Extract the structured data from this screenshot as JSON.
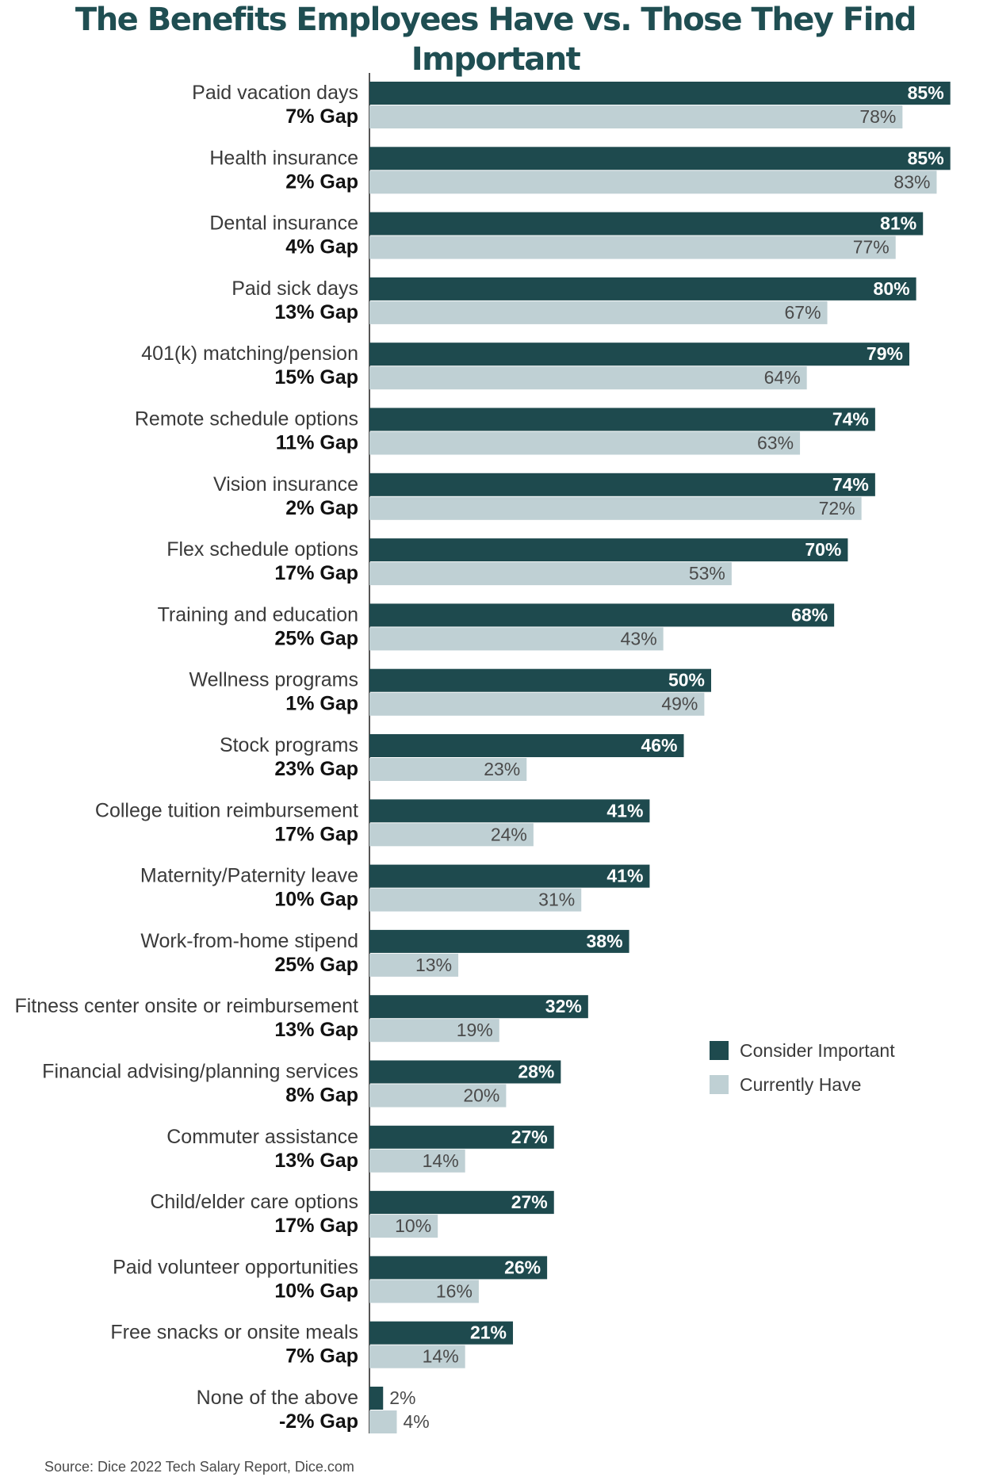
{
  "title": "The Benefits Employees Have vs. Those They Find Important",
  "source": "Source: Dice 2022 Tech Salary Report, Dice.com",
  "colors": {
    "important": "#1e4a4e",
    "have": "#bfd0d4",
    "axis": "#555555"
  },
  "legend": {
    "important_label": "Consider Important",
    "have_label": "Currently Have"
  },
  "chart_data": {
    "type": "bar",
    "orientation": "horizontal",
    "title": "The Benefits Employees Have vs. Those They Find Important",
    "xlim": [
      0,
      100
    ],
    "legend_position": "right",
    "categories": [
      "Paid vacation days",
      "Health insurance",
      "Dental insurance",
      "Paid sick days",
      "401(k) matching/pension",
      "Remote schedule options",
      "Vision insurance",
      "Flex schedule options",
      "Training and education",
      "Wellness programs",
      "Stock programs",
      "College tuition reimbursement",
      "Maternity/Paternity leave",
      "Work-from-home stipend",
      "Fitness center onsite or reimbursement",
      "Financial advising/planning services",
      "Commuter assistance",
      "Child/elder care options",
      "Paid volunteer opportunities",
      "Free snacks or onsite meals",
      "None of the above"
    ],
    "gaps": [
      "7% Gap",
      "2% Gap",
      "4% Gap",
      "13% Gap",
      "15% Gap",
      "11% Gap",
      "2% Gap",
      "17% Gap",
      "25% Gap",
      "1% Gap",
      "23% Gap",
      "17% Gap",
      "10% Gap",
      "25% Gap",
      "13% Gap",
      "8% Gap",
      "13% Gap",
      "17% Gap",
      "10% Gap",
      "7% Gap",
      "-2% Gap"
    ],
    "series": [
      {
        "name": "Consider Important",
        "values": [
          85,
          85,
          81,
          80,
          79,
          74,
          74,
          70,
          68,
          50,
          46,
          41,
          41,
          38,
          32,
          28,
          27,
          27,
          26,
          21,
          2
        ]
      },
      {
        "name": "Currently Have",
        "values": [
          78,
          83,
          77,
          67,
          64,
          63,
          72,
          53,
          43,
          49,
          23,
          24,
          31,
          13,
          19,
          20,
          14,
          10,
          16,
          14,
          4
        ]
      }
    ]
  }
}
